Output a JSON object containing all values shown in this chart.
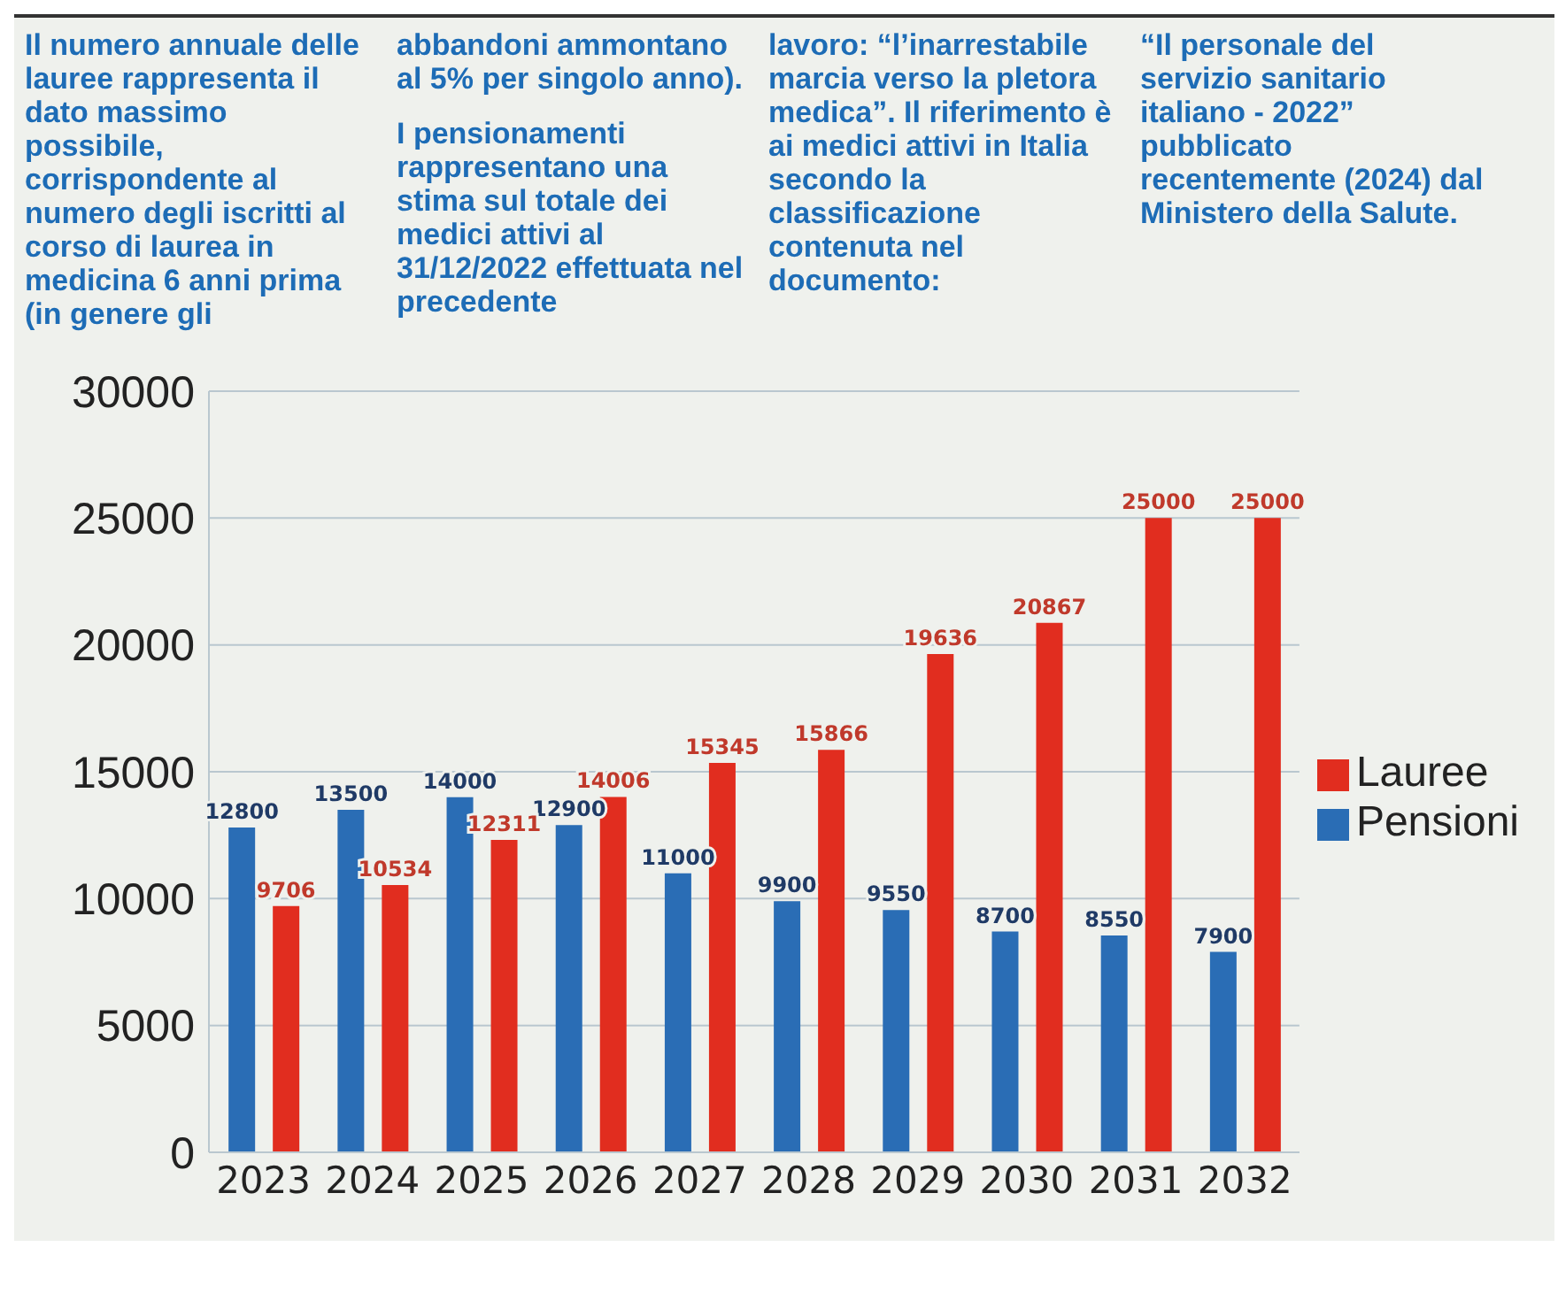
{
  "chart_data": {
    "type": "bar",
    "annotations": [
      "Il numero annuale delle lauree rappresenta il dato massimo possibile, corrispondente al numero degli iscritti al corso di laurea in medicina 6 anni prima (in genere gli",
      "abbandoni ammontano al 5% per singolo anno).\nI pensionamenti rappresentano una stima sul totale dei medici attivi al 31/12/2022 effettuata nel precedente",
      "lavoro: “l’inarrestabile marcia verso la pletora medica”. Il riferimento è ai medici attivi in Italia secondo la classificazione contenuta nel documento:",
      "“Il personale del servizio sanitario italiano - 2022” pubblicato recentemente (2024) dal Ministero della Salute."
    ],
    "categories": [
      "2023",
      "2024",
      "2025",
      "2026",
      "2027",
      "2028",
      "2029",
      "2030",
      "2031",
      "2032"
    ],
    "series": [
      {
        "name": "Pensioni",
        "color": "#2a6db5",
        "values": [
          12800,
          13500,
          14000,
          12900,
          11000,
          9900,
          9550,
          8700,
          8550,
          7900
        ]
      },
      {
        "name": "Lauree",
        "color": "#e12d1f",
        "values": [
          9706,
          10534,
          12311,
          14006,
          15345,
          15866,
          19636,
          20867,
          25000,
          25000
        ]
      }
    ],
    "ylim": [
      0,
      30000
    ],
    "yticks": [
      0,
      5000,
      10000,
      15000,
      20000,
      25000,
      30000
    ],
    "grid": "y",
    "legend": "right",
    "data_labels": true
  }
}
